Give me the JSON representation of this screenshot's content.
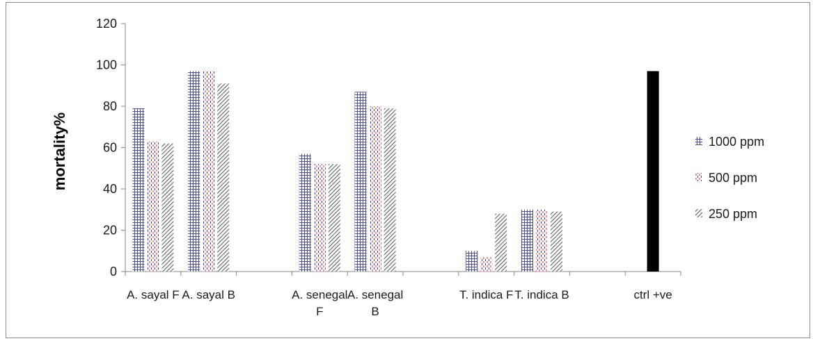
{
  "chart_data": {
    "type": "bar",
    "ylabel": "mortality%",
    "xlabel": "",
    "title": "",
    "ylim": [
      0,
      120
    ],
    "yticks": [
      0,
      20,
      40,
      60,
      80,
      100,
      120
    ],
    "grid": false,
    "legend_position": "right",
    "categories": [
      [
        "A. sayal F"
      ],
      [
        "A. sayal B"
      ],
      [],
      [
        "A. senegal",
        "F"
      ],
      [
        "A. senegal",
        "B"
      ],
      [],
      [
        "T. indica F"
      ],
      [
        "T. indica B"
      ],
      [],
      [
        "ctrl +ve"
      ]
    ],
    "series": [
      {
        "name": "1000 ppm",
        "color": "#4a4aa0",
        "pattern": "grid",
        "values": [
          79,
          97,
          null,
          57,
          87,
          null,
          10,
          30,
          null,
          null
        ]
      },
      {
        "name": "500 ppm",
        "color": "#c0304a",
        "pattern": "dashed-vertical",
        "values": [
          63,
          97,
          null,
          52,
          80,
          null,
          7,
          30,
          null,
          null
        ]
      },
      {
        "name": "250 ppm",
        "color": "#555555",
        "pattern": "diagonal",
        "values": [
          62,
          91,
          null,
          52,
          79,
          null,
          28,
          29,
          null,
          null
        ]
      }
    ],
    "control": {
      "category_index": 9,
      "value": 97,
      "color": "#000000"
    }
  }
}
